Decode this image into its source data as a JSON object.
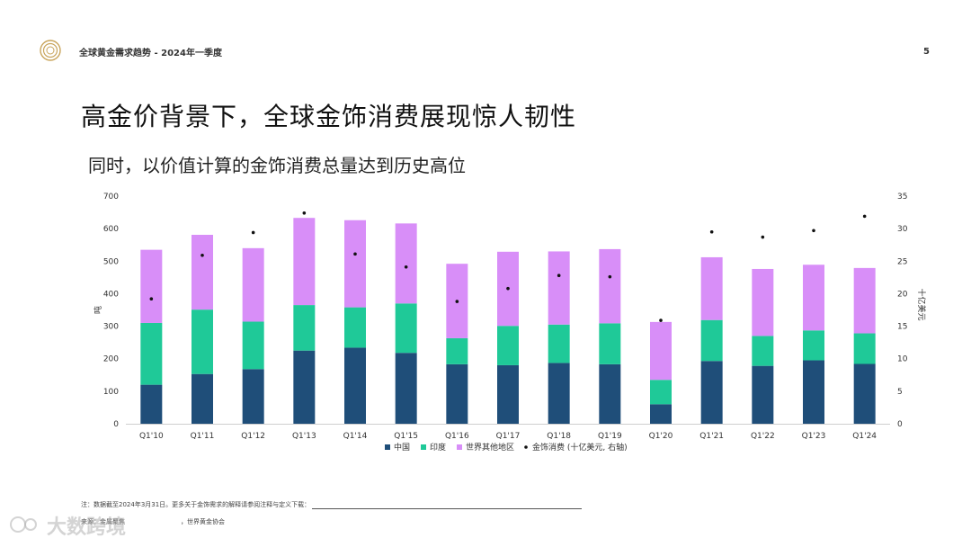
{
  "header": {
    "title": "全球黄金需求趋势 - 2024年一季度",
    "page_number": "5"
  },
  "main_title": "高金价背景下，全球金饰消费展现惊人韧性",
  "subtitle": "同时，以价值计算的金饰消费总量达到历史高位",
  "footnote": "注：数据截至2024年3月31日。更多关于金饰需求的解释请参阅注释与定义下载：",
  "source_left": "来源：金属聚焦",
  "source_right": "，世界黄金协会",
  "watermark": "大数跨境",
  "colors": {
    "china": "#1f4e79",
    "india": "#1fc998",
    "rest_of_world": "#d88ef8",
    "value_dot": "#111111"
  },
  "chart_data": {
    "type": "bar",
    "stacked": true,
    "categories": [
      "Q1'10",
      "Q1'11",
      "Q1'12",
      "Q1'13",
      "Q1'14",
      "Q1'15",
      "Q1'16",
      "Q1'17",
      "Q1'18",
      "Q1'19",
      "Q1'20",
      "Q1'21",
      "Q1'22",
      "Q1'23",
      "Q1'24"
    ],
    "series": [
      {
        "name": "中国",
        "values": [
          120,
          153,
          168,
          225,
          234,
          218,
          183,
          180,
          187,
          183,
          60,
          193,
          178,
          195,
          184
        ]
      },
      {
        "name": "印度",
        "values": [
          190,
          198,
          146,
          140,
          124,
          152,
          80,
          121,
          118,
          126,
          75,
          126,
          92,
          92,
          94
        ]
      },
      {
        "name": "世界其他地区",
        "values": [
          225,
          230,
          226,
          268,
          268,
          246,
          229,
          228,
          225,
          228,
          178,
          193,
          206,
          202,
          201
        ]
      }
    ],
    "line_series": {
      "name": "金饰消费 (十亿美元, 右轴)",
      "axis": "right",
      "values": [
        19.2,
        25.9,
        29.4,
        32.4,
        26.1,
        24.1,
        18.8,
        20.8,
        22.8,
        22.6,
        15.9,
        29.5,
        28.7,
        29.7,
        31.9
      ]
    },
    "ylabel": "吨",
    "y2label": "十亿美元",
    "ylim": [
      0,
      700
    ],
    "y2lim": [
      0,
      35
    ],
    "yticks": [
      0,
      100,
      200,
      300,
      400,
      500,
      600,
      700
    ],
    "y2ticks": [
      0,
      5,
      10,
      15,
      20,
      25,
      30,
      35
    ],
    "legend_position": "bottom",
    "grid": false
  }
}
